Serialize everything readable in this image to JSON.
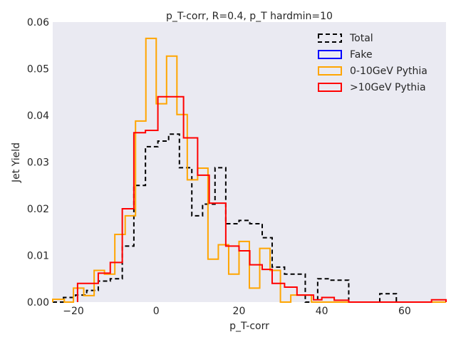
{
  "chart_data": {
    "type": "step-histogram",
    "title": "p_T-corr, R=0.4, p_T hardmin=10",
    "xlabel": "p_T-corr",
    "ylabel": "Jet Yield",
    "xlim": [
      -25,
      70
    ],
    "ylim": [
      0,
      0.06
    ],
    "xticks": [
      -20,
      0,
      20,
      40,
      60
    ],
    "yticks": [
      0.0,
      0.01,
      0.02,
      0.03,
      0.04,
      0.05,
      0.06
    ],
    "xtick_labels": [
      "−20",
      "0",
      "20",
      "40",
      "60"
    ],
    "ytick_labels": [
      "0.00",
      "0.01",
      "0.02",
      "0.03",
      "0.04",
      "0.05",
      "0.06"
    ],
    "grid": false,
    "background": "#eaeaf2",
    "legend_position": "upper right",
    "series": [
      {
        "name": "Total",
        "color": "#000000",
        "line_style": "dashed",
        "edges": [
          -25,
          -22.4,
          -19.5,
          -16.8,
          -14.0,
          -11.1,
          -8.2,
          -5.4,
          -2.6,
          0.4,
          3.0,
          5.6,
          8.6,
          11.2,
          14.2,
          16.8,
          20.0,
          22.6,
          25.6,
          28.0,
          31.0,
          36.0,
          39.0,
          42.0,
          46.5,
          49.0,
          51.0,
          54.0,
          58.0,
          63.0,
          66.5,
          70.0
        ],
        "values": [
          0.0,
          0.001,
          0.0015,
          0.0025,
          0.0045,
          0.005,
          0.012,
          0.025,
          0.0333,
          0.0345,
          0.036,
          0.0288,
          0.0185,
          0.021,
          0.0288,
          0.0168,
          0.0175,
          0.0168,
          0.0138,
          0.0075,
          0.006,
          0.0,
          0.005,
          0.0047,
          0.0,
          0.0,
          0.0,
          0.0018,
          0.0,
          0.0,
          0.0
        ]
      },
      {
        "name": "Fake",
        "color": "#0000ff",
        "line_style": "solid",
        "edges": [],
        "values": []
      },
      {
        "name": "0-10GeV Pythia",
        "color": "#ffa500",
        "line_style": "solid",
        "edges": [
          -25,
          -22.2,
          -20.0,
          -17.5,
          -15.0,
          -12.5,
          -10.0,
          -7.5,
          -5.0,
          -2.5,
          0.0,
          2.5,
          5.0,
          7.5,
          10.0,
          12.5,
          15.0,
          17.5,
          20.0,
          22.5,
          25.0,
          27.5,
          30.0,
          32.5,
          35.0,
          37.5,
          40.0,
          45.0,
          50.0,
          55.0,
          60.0,
          65.0,
          70.0
        ],
        "values": [
          0.0006,
          0.0,
          0.003,
          0.0014,
          0.0068,
          0.006,
          0.0145,
          0.0185,
          0.0388,
          0.0565,
          0.0425,
          0.0527,
          0.0402,
          0.0262,
          0.0287,
          0.0092,
          0.0123,
          0.006,
          0.013,
          0.003,
          0.0115,
          0.0068,
          0.0,
          0.0015,
          0.0015,
          0.0,
          0.0,
          0.0,
          0.0,
          0.0,
          0.0,
          0.0
        ]
      },
      {
        "name": ">10GeV Pythia",
        "color": "#ff0000",
        "line_style": "solid",
        "edges": [
          -19.0,
          -16.5,
          -14.0,
          -11.1,
          -8.2,
          -5.4,
          -2.6,
          0.4,
          3.0,
          6.6,
          10.0,
          12.8,
          16.8,
          20.0,
          22.6,
          25.6,
          28.0,
          31.0,
          34.0,
          38.0,
          40.0,
          43.0,
          46.5,
          49.0,
          54.0,
          58.0,
          63.0,
          66.5,
          70.0
        ],
        "values": [
          0.004,
          0.004,
          0.0062,
          0.0085,
          0.02,
          0.0363,
          0.0368,
          0.044,
          0.044,
          0.0352,
          0.0272,
          0.0212,
          0.012,
          0.011,
          0.008,
          0.007,
          0.004,
          0.0032,
          0.0015,
          0.0005,
          0.001,
          0.0004,
          0.0,
          0.0,
          0.0,
          0.0,
          0.0,
          0.0005
        ]
      }
    ]
  }
}
